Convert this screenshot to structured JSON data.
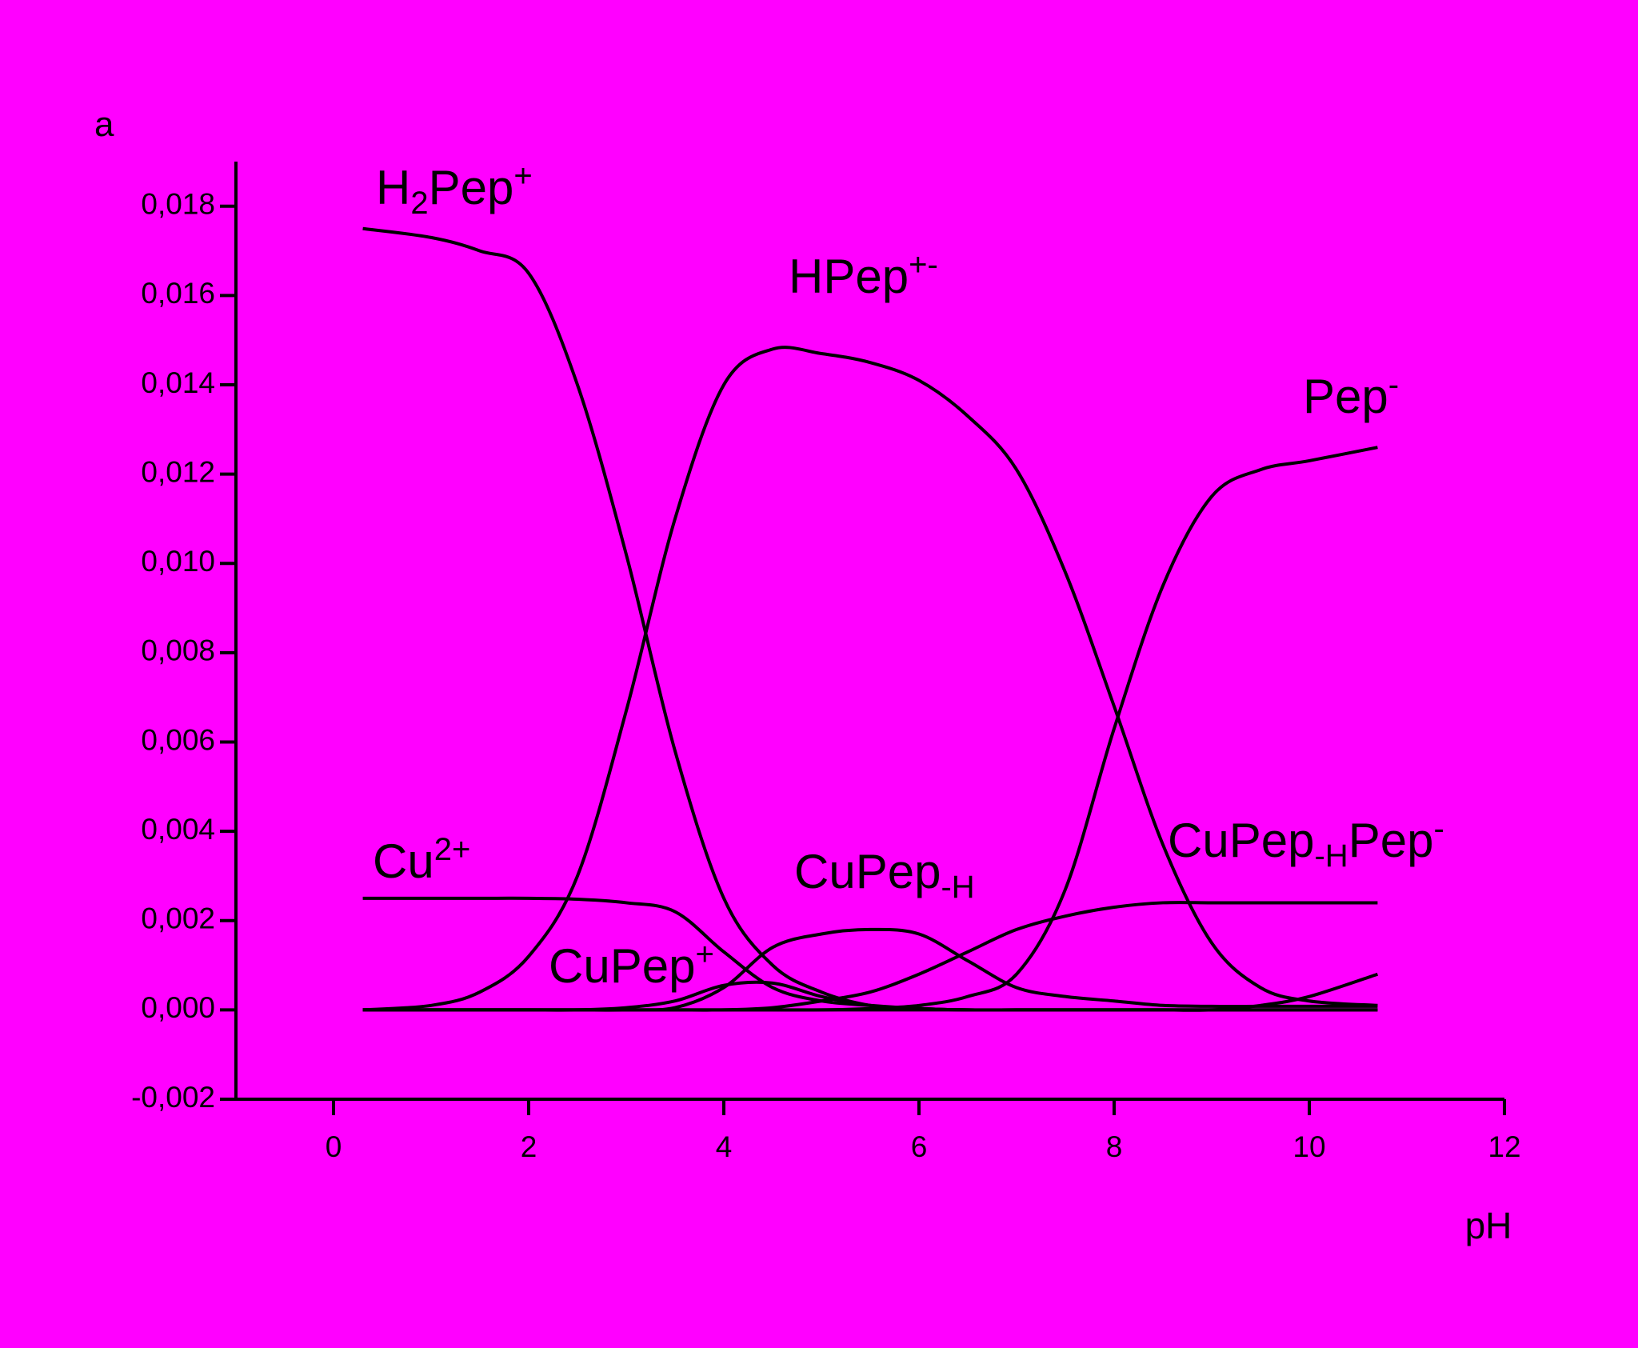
{
  "chart_data": {
    "type": "line",
    "panel_label": "a",
    "x_label": "pH",
    "background": "#ff00ff",
    "x": [
      0.3,
      1,
      1.5,
      2,
      2.5,
      3,
      3.5,
      4,
      4.5,
      5,
      5.5,
      6,
      6.5,
      7,
      7.5,
      8,
      8.5,
      9,
      9.5,
      10,
      10.7
    ],
    "series": [
      {
        "name": [
          {
            "text": "H"
          },
          {
            "sub": "2"
          },
          {
            "text": "Pep"
          },
          {
            "sup": "+"
          }
        ],
        "color": "#000000",
        "values": [
          0.0175,
          0.0173,
          0.017,
          0.0165,
          0.014,
          0.0102,
          0.0058,
          0.0025,
          0.001,
          0.0004,
          0.0001,
          3e-05,
          0,
          0,
          0,
          0,
          0,
          0,
          0,
          0,
          0
        ]
      },
      {
        "name": [
          {
            "text": "HPep"
          },
          {
            "sup": "+-"
          }
        ],
        "color": "#000000",
        "values": [
          0,
          0.0001,
          0.0004,
          0.0012,
          0.003,
          0.0067,
          0.011,
          0.014,
          0.0148,
          0.0147,
          0.0145,
          0.0141,
          0.0133,
          0.0121,
          0.0098,
          0.0068,
          0.0037,
          0.0015,
          0.0005,
          0.0002,
          0.0001
        ]
      },
      {
        "name": [
          {
            "text": "Pep"
          },
          {
            "sup": "-"
          }
        ],
        "color": "#000000",
        "values": [
          0,
          0,
          0,
          0,
          0,
          0,
          0,
          0,
          0,
          0,
          3e-05,
          0.0001,
          0.0003,
          0.0008,
          0.0027,
          0.0063,
          0.0095,
          0.0115,
          0.0121,
          0.0123,
          0.0126
        ]
      },
      {
        "name": [
          {
            "text": "Cu"
          },
          {
            "sup": "2+"
          }
        ],
        "color": "#000000",
        "values": [
          0.0025,
          0.0025,
          0.0025,
          0.0025,
          0.00248,
          0.0024,
          0.0022,
          0.0013,
          0.0005,
          0.0002,
          0.0001,
          3e-05,
          0,
          0,
          0,
          0,
          0,
          0,
          0,
          0,
          0
        ]
      },
      {
        "name": [
          {
            "text": "CuPep"
          },
          {
            "sup": "+"
          }
        ],
        "color": "#000000",
        "values": [
          0,
          0,
          0,
          0,
          0,
          5e-05,
          0.0002,
          0.00055,
          0.0006,
          0.0003,
          0.0001,
          3e-05,
          0,
          0,
          0,
          0,
          0,
          0,
          0,
          0,
          0
        ]
      },
      {
        "name": [
          {
            "text": "CuPep"
          },
          {
            "sub": "-H"
          }
        ],
        "color": "#000000",
        "values": [
          0,
          0,
          0,
          0,
          0,
          0,
          5e-05,
          0.0005,
          0.0014,
          0.0017,
          0.0018,
          0.0017,
          0.0011,
          0.0005,
          0.0003,
          0.0002,
          0.0001,
          8e-05,
          8e-05,
          8e-05,
          8e-05
        ]
      },
      {
        "name": [
          {
            "text": "CuPep"
          },
          {
            "sub": "-H"
          },
          {
            "text": "Pep"
          },
          {
            "sup": "-"
          }
        ],
        "color": "#000000",
        "values": [
          0,
          0,
          0,
          0,
          0,
          0,
          0,
          0,
          5e-05,
          0.0002,
          0.0004,
          0.0008,
          0.0013,
          0.0018,
          0.0021,
          0.0023,
          0.0024,
          0.0024,
          0.0024,
          0.0024,
          0.0024
        ]
      },
      {
        "color": "#000000",
        "values": [
          0,
          0,
          0,
          0,
          0,
          0,
          0,
          0,
          0,
          0,
          0,
          0,
          0,
          0,
          0,
          0,
          0,
          0,
          0.0001,
          0.0003,
          0.0008
        ]
      }
    ],
    "xlim": [
      -1,
      12
    ],
    "ylim": [
      -0.002,
      0.019
    ],
    "xticks": [
      0,
      2,
      4,
      6,
      8,
      10,
      12
    ],
    "yticks": [
      {
        "value": -0.002,
        "label": "-0,002"
      },
      {
        "value": 0,
        "label": "0,000"
      },
      {
        "value": 0.002,
        "label": "0,002"
      },
      {
        "value": 0.004,
        "label": "0,004"
      },
      {
        "value": 0.006,
        "label": "0,006"
      },
      {
        "value": 0.008,
        "label": "0,008"
      },
      {
        "value": 0.01,
        "label": "0,010"
      },
      {
        "value": 0.012,
        "label": "0,012"
      },
      {
        "value": 0.014,
        "label": "0,014"
      },
      {
        "value": 0.016,
        "label": "0,016"
      },
      {
        "value": 0.018,
        "label": "0,018"
      }
    ],
    "grid": false
  }
}
